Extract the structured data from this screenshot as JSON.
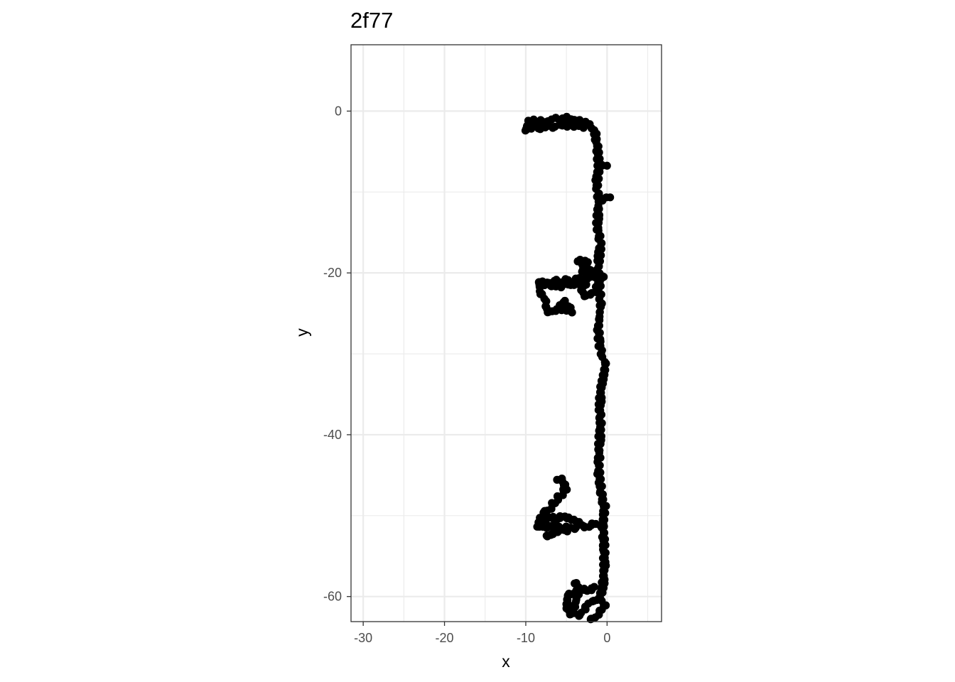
{
  "chart_data": {
    "type": "scatter",
    "title": "2f77",
    "xlabel": "x",
    "ylabel": "y",
    "xlim": [
      -31.5,
      6.7
    ],
    "ylim": [
      -63.1,
      8.2
    ],
    "x_ticks": [
      -30,
      -20,
      -10,
      0
    ],
    "y_ticks": [
      0,
      -20,
      -40,
      -60
    ],
    "x_tick_labels": [
      "-30",
      "-20",
      "-10",
      "0"
    ],
    "y_tick_labels": [
      "0",
      "-20",
      "-40",
      "-60"
    ],
    "grid": true,
    "point_color": "#000000",
    "segments": [
      [
        [
          -10.0,
          -2.2
        ],
        [
          -9.5,
          -1.2
        ],
        [
          -8.0,
          -1.3
        ],
        [
          -6.5,
          -1.0
        ],
        [
          -5.0,
          -0.9
        ],
        [
          -3.5,
          -1.3
        ],
        [
          -2.5,
          -1.6
        ],
        [
          -1.5,
          -2.4
        ],
        [
          -1.2,
          -4.5
        ],
        [
          -1.0,
          -7.0
        ],
        [
          -1.3,
          -9.0
        ],
        [
          -1.0,
          -11.0
        ],
        [
          -1.2,
          -14.0
        ],
        [
          -0.8,
          -16.5
        ],
        [
          -1.1,
          -19.0
        ],
        [
          -1.0,
          -21.5
        ],
        [
          -0.8,
          -24.0
        ],
        [
          -1.1,
          -27.0
        ],
        [
          -0.8,
          -29.5
        ],
        [
          -0.2,
          -31.5
        ],
        [
          -0.7,
          -34.0
        ],
        [
          -0.9,
          -36.5
        ],
        [
          -0.8,
          -39.0
        ],
        [
          -1.0,
          -42.0
        ],
        [
          -1.0,
          -45.0
        ],
        [
          -0.7,
          -47.5
        ],
        [
          -0.3,
          -49.0
        ],
        [
          -0.5,
          -51.0
        ],
        [
          -0.4,
          -53.5
        ],
        [
          -0.3,
          -56.0
        ],
        [
          -0.5,
          -58.5
        ],
        [
          -0.8,
          -60.0
        ],
        [
          -0.3,
          -61.2
        ],
        [
          -1.2,
          -62.2
        ],
        [
          -2.2,
          -63.0
        ]
      ],
      [
        [
          -10.0,
          -2.6
        ],
        [
          -9.0,
          -2.1
        ],
        [
          -7.5,
          -2.0
        ],
        [
          -6.0,
          -1.8
        ],
        [
          -4.5,
          -1.7
        ],
        [
          -3.0,
          -1.9
        ]
      ],
      [
        [
          -1.0,
          -11.0
        ],
        [
          0.2,
          -10.8
        ]
      ],
      [
        [
          -1.0,
          -6.5
        ],
        [
          -0.2,
          -6.8
        ]
      ],
      [
        [
          -0.8,
          -20.5
        ],
        [
          -2.0,
          -20.6
        ],
        [
          -4.0,
          -20.9
        ],
        [
          -6.0,
          -21.0
        ],
        [
          -8.5,
          -21.3
        ],
        [
          -8.0,
          -22.5
        ],
        [
          -7.5,
          -24.0
        ],
        [
          -7.0,
          -25.0
        ],
        [
          -6.0,
          -24.3
        ],
        [
          -4.5,
          -24.8
        ],
        [
          -5.0,
          -23.5
        ],
        [
          -6.0,
          -23.8
        ]
      ],
      [
        [
          -8.5,
          -21.3
        ],
        [
          -7.0,
          -21.5
        ],
        [
          -5.5,
          -21.7
        ],
        [
          -4.0,
          -21.3
        ],
        [
          -3.0,
          -21.0
        ]
      ],
      [
        [
          -3.0,
          -20.0
        ],
        [
          -2.5,
          -18.5
        ],
        [
          -3.5,
          -18.6
        ],
        [
          -2.0,
          -19.8
        ],
        [
          -3.0,
          -22.0
        ],
        [
          -2.5,
          -23.0
        ],
        [
          -1.5,
          -22.5
        ],
        [
          -0.5,
          -20.3
        ]
      ],
      [
        [
          -0.4,
          -51.0
        ],
        [
          -2.0,
          -51.2
        ],
        [
          -3.5,
          -51.4
        ],
        [
          -5.5,
          -51.6
        ],
        [
          -7.0,
          -51.3
        ],
        [
          -8.5,
          -51.5
        ],
        [
          -8.0,
          -49.8
        ],
        [
          -7.0,
          -49.0
        ],
        [
          -6.0,
          -47.8
        ],
        [
          -5.0,
          -46.6
        ],
        [
          -5.5,
          -45.6
        ],
        [
          -6.0,
          -45.4
        ]
      ],
      [
        [
          -8.0,
          -50.4
        ],
        [
          -6.5,
          -50.3
        ],
        [
          -5.0,
          -50.2
        ],
        [
          -3.5,
          -50.8
        ]
      ],
      [
        [
          -7.5,
          -52.4
        ],
        [
          -6.5,
          -52.0
        ],
        [
          -5.0,
          -51.8
        ]
      ],
      [
        [
          -1.5,
          -59.0
        ],
        [
          -3.0,
          -59.2
        ],
        [
          -4.5,
          -59.5
        ],
        [
          -5.0,
          -60.5
        ],
        [
          -4.8,
          -61.7
        ],
        [
          -4.3,
          -62.3
        ],
        [
          -4.0,
          -61.0
        ],
        [
          -3.5,
          -59.6
        ],
        [
          -3.8,
          -58.2
        ]
      ],
      [
        [
          -0.8,
          -60.0
        ],
        [
          -1.5,
          -60.4
        ],
        [
          -2.5,
          -61.2
        ],
        [
          -3.5,
          -62.5
        ]
      ]
    ]
  }
}
